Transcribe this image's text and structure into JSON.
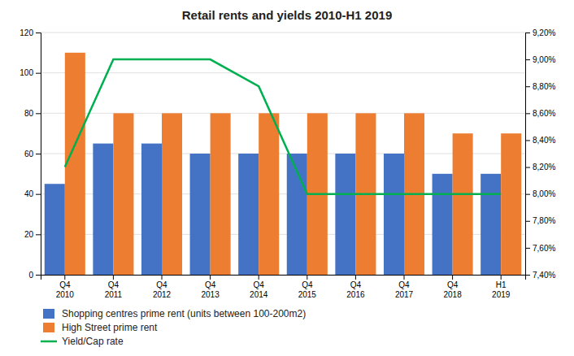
{
  "chart_data": {
    "type": "bar",
    "title": "Retail rents and yields 2010-H1 2019",
    "categories": [
      "Q4\n2010",
      "Q4\n2011",
      "Q4\n2012",
      "Q4\n2013",
      "Q4\n2014",
      "Q4\n2015",
      "Q4\n2016",
      "Q4\n2017",
      "Q4\n2018",
      "H1\n2019"
    ],
    "series": [
      {
        "name": "Shopping centres prime rent (units between 100-200m2)",
        "type": "bar",
        "color": "#4472c4",
        "values": [
          45,
          65,
          65,
          60,
          60,
          60,
          60,
          60,
          50,
          50
        ]
      },
      {
        "name": "High Street prime rent",
        "type": "bar",
        "color": "#ed7d31",
        "values": [
          110,
          80,
          80,
          80,
          80,
          80,
          80,
          80,
          70,
          70
        ]
      },
      {
        "name": "Yield/Cap rate",
        "type": "line",
        "color": "#00b050",
        "axis": "y2",
        "values": [
          8.2,
          9.0,
          9.0,
          9.0,
          8.8,
          8.0,
          8.0,
          8.0,
          8.0,
          8.0
        ]
      }
    ],
    "ylim": [
      0,
      120
    ],
    "yticks": [
      0,
      20,
      40,
      60,
      80,
      100,
      120
    ],
    "y2lim": [
      7.4,
      9.2
    ],
    "y2ticks": [
      {
        "value": 7.4,
        "label": "7,40%"
      },
      {
        "value": 7.6,
        "label": "7,60%"
      },
      {
        "value": 7.8,
        "label": "7,80%"
      },
      {
        "value": 8.0,
        "label": "8,00%"
      },
      {
        "value": 8.2,
        "label": "8,20%"
      },
      {
        "value": 8.4,
        "label": "8,40%"
      },
      {
        "value": 8.6,
        "label": "8,60%"
      },
      {
        "value": 8.8,
        "label": "8,80%"
      },
      {
        "value": 9.0,
        "label": "9,00%"
      },
      {
        "value": 9.2,
        "label": "9,20%"
      }
    ],
    "grid": true,
    "legend": "bottom-left"
  }
}
